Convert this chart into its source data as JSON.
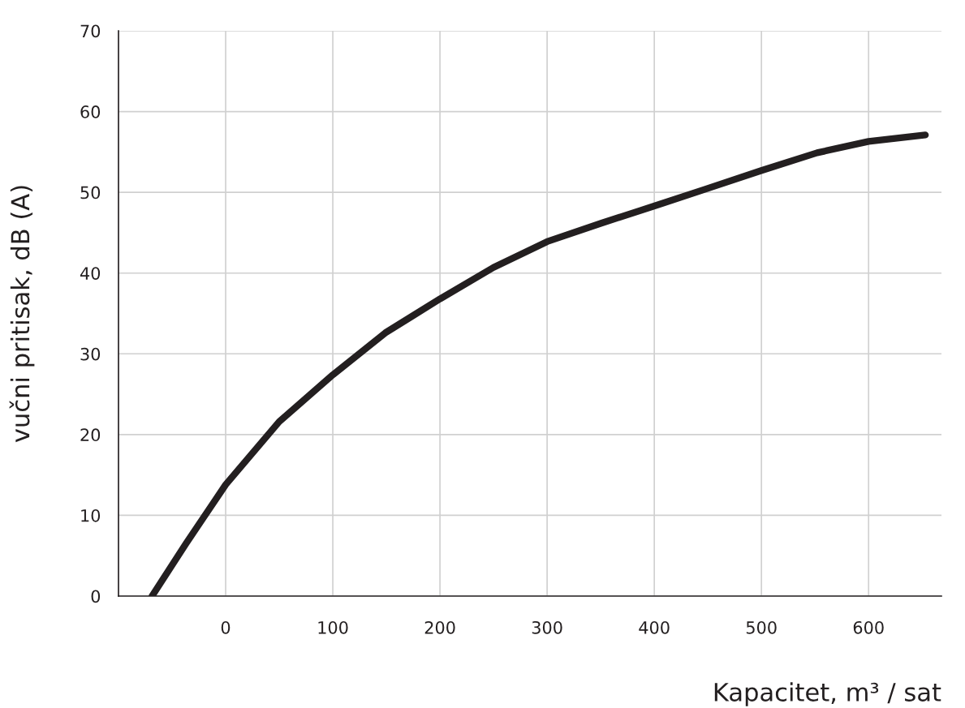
{
  "chart_data": {
    "type": "line",
    "xlabel": "Kapacitet, m³ / sat",
    "ylabel": "vučni pritisak, dB (A)",
    "series": [
      {
        "color": "#231f20",
        "x": [
          -68.7,
          -37,
          0,
          50,
          100,
          149,
          200,
          250,
          300,
          351,
          400,
          448,
          500,
          552,
          600,
          653
        ],
        "values": [
          0,
          6.5,
          13.8,
          21.6,
          27.4,
          32.6,
          36.8,
          40.7,
          43.9,
          46.2,
          48.3,
          50.4,
          52.7,
          54.9,
          56.3,
          57.1
        ]
      }
    ],
    "xlim": [
      -100,
      668
    ],
    "xticks": [
      0,
      100,
      200,
      300,
      400,
      500,
      600
    ],
    "ylim": [
      0,
      70
    ],
    "yticks": [
      0,
      10,
      20,
      30,
      40,
      50,
      60,
      70
    ],
    "grid": true,
    "marker": "none",
    "line_style": "solid"
  }
}
